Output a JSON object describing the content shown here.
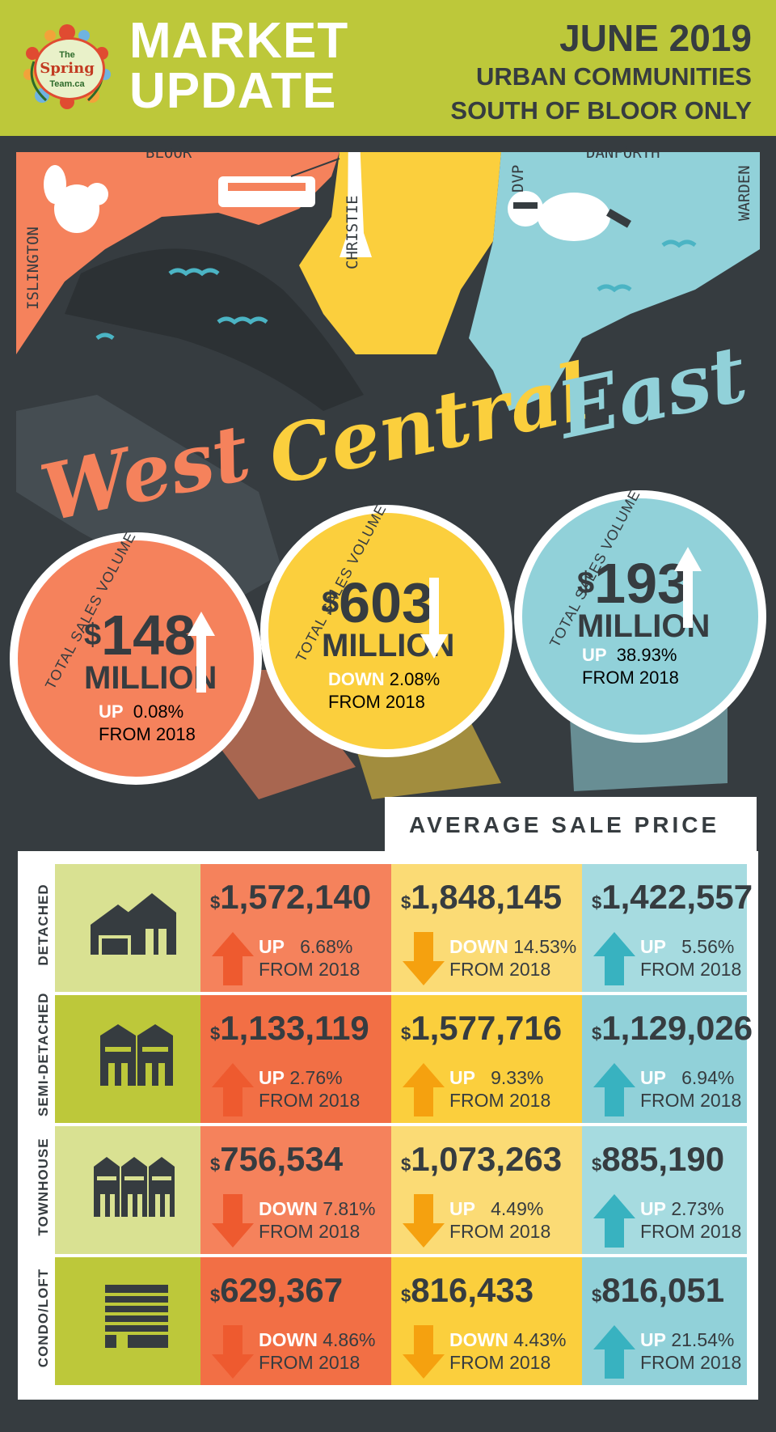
{
  "header": {
    "title_line1": "MARKET",
    "title_line2": "UPDATE",
    "date": "JUNE 2019",
    "subtitle1": "URBAN COMMUNITIES",
    "subtitle2": "SOUTH OF BLOOR ONLY",
    "logo": {
      "line1": "The",
      "line2": "Spring",
      "line3": "Team.ca"
    }
  },
  "map": {
    "streets": [
      "BLOOR",
      "DANFORTH",
      "ISLINGTON",
      "CHRISTIE",
      "DVP",
      "WARDEN"
    ],
    "regions": [
      "West",
      "Central",
      "East"
    ]
  },
  "colors": {
    "west": "#f5825c",
    "central": "#fbcf3d",
    "east": "#91d1d9",
    "dark": "#363c40",
    "green": "#bdc83a"
  },
  "volumes": [
    {
      "label": "TOTAL SALES VOLUME",
      "currency": "$",
      "amount": "148",
      "unit": "MILLION",
      "direction": "UP",
      "pct": "0.08%",
      "from": "FROM 2018"
    },
    {
      "label": "TOTAL SALES VOLUME",
      "currency": "$",
      "amount": "603",
      "unit": "MILLION",
      "direction": "DOWN",
      "pct": "2.08%",
      "from": "FROM 2018"
    },
    {
      "label": "TOTAL SALES VOLUME",
      "currency": "$",
      "amount": "193",
      "unit": "MILLION",
      "direction": "UP",
      "pct": "38.93%",
      "from": "FROM 2018"
    }
  ],
  "avg_title": "AVERAGE SALE PRICE",
  "rows": [
    {
      "type": "DETACHED",
      "icon": "detached-house-icon",
      "cells": [
        {
          "price": "1,572,140",
          "direction": "UP",
          "pct": "6.68%",
          "from": "FROM 2018"
        },
        {
          "price": "1,848,145",
          "direction": "DOWN",
          "pct": "14.53%",
          "from": "FROM 2018"
        },
        {
          "price": "1,422,557",
          "direction": "UP",
          "pct": "5.56%",
          "from": "FROM 2018"
        }
      ]
    },
    {
      "type": "SEMI-DETACHED",
      "icon": "semi-detached-icon",
      "cells": [
        {
          "price": "1,133,119",
          "direction": "UP",
          "pct": "2.76%",
          "from": "FROM 2018"
        },
        {
          "price": "1,577,716",
          "direction": "UP",
          "pct": "9.33%",
          "from": "FROM 2018"
        },
        {
          "price": "1,129,026",
          "direction": "UP",
          "pct": "6.94%",
          "from": "FROM 2018"
        }
      ]
    },
    {
      "type": "TOWNHOUSE",
      "icon": "townhouse-icon",
      "cells": [
        {
          "price": "756,534",
          "direction": "DOWN",
          "pct": "7.81%",
          "from": "FROM 2018"
        },
        {
          "price": "1,073,263",
          "direction": "UP",
          "pct": "4.49%",
          "from": "FROM 2018"
        },
        {
          "price": "885,190",
          "direction": "UP",
          "pct": "2.73%",
          "from": "FROM 2018"
        }
      ]
    },
    {
      "type": "CONDO/LOFT",
      "icon": "condo-building-icon",
      "cells": [
        {
          "price": "629,367",
          "direction": "DOWN",
          "pct": "4.86%",
          "from": "FROM 2018"
        },
        {
          "price": "816,433",
          "direction": "DOWN",
          "pct": "4.43%",
          "from": "FROM 2018"
        },
        {
          "price": "816,051",
          "direction": "UP",
          "pct": "21.54%",
          "from": "FROM 2018"
        }
      ]
    }
  ]
}
